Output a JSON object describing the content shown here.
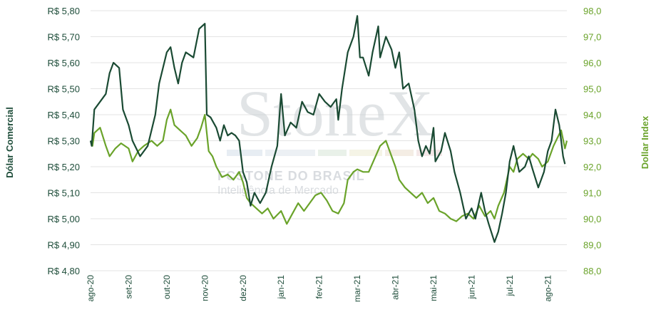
{
  "chart_data": {
    "type": "line",
    "x": [
      "ago-20",
      "set-20",
      "out-20",
      "nov-20",
      "dez-20",
      "jan-21",
      "fev-21",
      "mar-21",
      "abr-21",
      "mai-21",
      "jun-21",
      "jul-21",
      "ago-21"
    ],
    "left_axis": {
      "label": "Dólar Comercial",
      "ylim": [
        4.8,
        5.8
      ],
      "ticks": [
        "R$ 4,80",
        "R$ 4,90",
        "R$ 5,00",
        "R$ 5,10",
        "R$ 5,20",
        "R$ 5,30",
        "R$ 5,40",
        "R$ 5,50",
        "R$ 5,60",
        "R$ 5,70",
        "R$ 5,80"
      ]
    },
    "right_axis": {
      "label": "Dollar Index",
      "ylim": [
        88.0,
        98.0
      ],
      "ticks": [
        "88,0",
        "89,0",
        "90,0",
        "91,0",
        "92,0",
        "93,0",
        "94,0",
        "95,0",
        "96,0",
        "97,0",
        "98,0"
      ]
    },
    "grid": true,
    "series": [
      {
        "name": "Dólar Comercial",
        "axis": "left",
        "color": "#1a4a33",
        "points": [
          [
            0,
            5.3
          ],
          [
            0.03,
            5.28
          ],
          [
            0.1,
            5.42
          ],
          [
            0.25,
            5.45
          ],
          [
            0.4,
            5.48
          ],
          [
            0.5,
            5.56
          ],
          [
            0.6,
            5.6
          ],
          [
            0.75,
            5.58
          ],
          [
            0.85,
            5.42
          ],
          [
            1.0,
            5.36
          ],
          [
            1.1,
            5.3
          ],
          [
            1.3,
            5.24
          ],
          [
            1.5,
            5.28
          ],
          [
            1.7,
            5.4
          ],
          [
            1.8,
            5.52
          ],
          [
            2.0,
            5.64
          ],
          [
            2.1,
            5.66
          ],
          [
            2.2,
            5.58
          ],
          [
            2.3,
            5.52
          ],
          [
            2.4,
            5.6
          ],
          [
            2.5,
            5.64
          ],
          [
            2.7,
            5.62
          ],
          [
            2.85,
            5.73
          ],
          [
            3.0,
            5.75
          ],
          [
            3.05,
            5.4
          ],
          [
            3.15,
            5.39
          ],
          [
            3.3,
            5.35
          ],
          [
            3.4,
            5.3
          ],
          [
            3.5,
            5.36
          ],
          [
            3.6,
            5.32
          ],
          [
            3.7,
            5.33
          ],
          [
            3.8,
            5.32
          ],
          [
            3.9,
            5.3
          ],
          [
            4.0,
            5.18
          ],
          [
            4.1,
            5.14
          ],
          [
            4.2,
            5.05
          ],
          [
            4.3,
            5.1
          ],
          [
            4.45,
            5.06
          ],
          [
            4.6,
            5.1
          ],
          [
            4.75,
            5.2
          ],
          [
            4.9,
            5.28
          ],
          [
            5.0,
            5.48
          ],
          [
            5.1,
            5.32
          ],
          [
            5.25,
            5.37
          ],
          [
            5.4,
            5.35
          ],
          [
            5.55,
            5.45
          ],
          [
            5.7,
            5.41
          ],
          [
            5.85,
            5.4
          ],
          [
            6.0,
            5.48
          ],
          [
            6.15,
            5.45
          ],
          [
            6.3,
            5.43
          ],
          [
            6.45,
            5.46
          ],
          [
            6.5,
            5.38
          ],
          [
            6.6,
            5.5
          ],
          [
            6.75,
            5.64
          ],
          [
            6.9,
            5.7
          ],
          [
            7.0,
            5.78
          ],
          [
            7.07,
            5.62
          ],
          [
            7.15,
            5.62
          ],
          [
            7.3,
            5.55
          ],
          [
            7.4,
            5.64
          ],
          [
            7.55,
            5.74
          ],
          [
            7.6,
            5.62
          ],
          [
            7.75,
            5.7
          ],
          [
            7.9,
            5.65
          ],
          [
            8.0,
            5.58
          ],
          [
            8.1,
            5.64
          ],
          [
            8.2,
            5.5
          ],
          [
            8.35,
            5.52
          ],
          [
            8.5,
            5.42
          ],
          [
            8.6,
            5.3
          ],
          [
            8.7,
            5.24
          ],
          [
            8.8,
            5.28
          ],
          [
            8.9,
            5.25
          ],
          [
            9.0,
            5.35
          ],
          [
            9.05,
            5.22
          ],
          [
            9.2,
            5.26
          ],
          [
            9.3,
            5.33
          ],
          [
            9.45,
            5.26
          ],
          [
            9.55,
            5.18
          ],
          [
            9.7,
            5.1
          ],
          [
            9.85,
            5.0
          ],
          [
            10.0,
            5.04
          ],
          [
            10.1,
            5.0
          ],
          [
            10.25,
            5.1
          ],
          [
            10.35,
            5.03
          ],
          [
            10.45,
            4.98
          ],
          [
            10.6,
            4.91
          ],
          [
            10.7,
            4.95
          ],
          [
            10.8,
            5.02
          ],
          [
            10.9,
            5.1
          ],
          [
            11.0,
            5.22
          ],
          [
            11.1,
            5.28
          ],
          [
            11.25,
            5.18
          ],
          [
            11.4,
            5.2
          ],
          [
            11.5,
            5.24
          ],
          [
            11.6,
            5.19
          ],
          [
            11.75,
            5.12
          ],
          [
            11.9,
            5.18
          ],
          [
            12.0,
            5.26
          ],
          [
            12.1,
            5.3
          ],
          [
            12.2,
            5.42
          ],
          [
            12.3,
            5.36
          ],
          [
            12.4,
            5.24
          ],
          [
            12.45,
            5.21
          ]
        ]
      },
      {
        "name": "Dollar Index",
        "axis": "right",
        "color": "#6aa32a",
        "points": [
          [
            0,
            93.0
          ],
          [
            0.05,
            92.8
          ],
          [
            0.1,
            93.3
          ],
          [
            0.25,
            93.5
          ],
          [
            0.4,
            92.8
          ],
          [
            0.5,
            92.4
          ],
          [
            0.65,
            92.7
          ],
          [
            0.8,
            92.9
          ],
          [
            1.0,
            92.7
          ],
          [
            1.1,
            92.2
          ],
          [
            1.25,
            92.6
          ],
          [
            1.4,
            92.8
          ],
          [
            1.6,
            93.0
          ],
          [
            1.75,
            92.8
          ],
          [
            1.9,
            93.0
          ],
          [
            2.0,
            93.8
          ],
          [
            2.1,
            94.2
          ],
          [
            2.2,
            93.6
          ],
          [
            2.35,
            93.4
          ],
          [
            2.5,
            93.2
          ],
          [
            2.65,
            92.8
          ],
          [
            2.8,
            93.1
          ],
          [
            2.9,
            93.5
          ],
          [
            3.0,
            94.0
          ],
          [
            3.1,
            92.6
          ],
          [
            3.2,
            92.4
          ],
          [
            3.3,
            92.0
          ],
          [
            3.45,
            91.6
          ],
          [
            3.6,
            91.7
          ],
          [
            3.75,
            91.5
          ],
          [
            3.9,
            91.8
          ],
          [
            4.0,
            91.4
          ],
          [
            4.1,
            90.8
          ],
          [
            4.2,
            90.6
          ],
          [
            4.35,
            90.4
          ],
          [
            4.5,
            90.2
          ],
          [
            4.65,
            90.4
          ],
          [
            4.8,
            90.0
          ],
          [
            5.0,
            90.3
          ],
          [
            5.15,
            89.8
          ],
          [
            5.3,
            90.2
          ],
          [
            5.45,
            90.6
          ],
          [
            5.6,
            90.3
          ],
          [
            5.75,
            90.6
          ],
          [
            5.9,
            90.9
          ],
          [
            6.05,
            91.0
          ],
          [
            6.2,
            90.7
          ],
          [
            6.35,
            90.3
          ],
          [
            6.5,
            90.2
          ],
          [
            6.65,
            90.6
          ],
          [
            6.75,
            91.5
          ],
          [
            6.9,
            91.8
          ],
          [
            7.0,
            91.9
          ],
          [
            7.15,
            91.8
          ],
          [
            7.3,
            91.8
          ],
          [
            7.45,
            92.3
          ],
          [
            7.6,
            92.8
          ],
          [
            7.75,
            93.0
          ],
          [
            7.85,
            92.6
          ],
          [
            8.0,
            92.0
          ],
          [
            8.1,
            91.5
          ],
          [
            8.25,
            91.2
          ],
          [
            8.4,
            91.0
          ],
          [
            8.55,
            90.8
          ],
          [
            8.7,
            91.0
          ],
          [
            8.85,
            90.6
          ],
          [
            9.0,
            90.8
          ],
          [
            9.15,
            90.3
          ],
          [
            9.3,
            90.2
          ],
          [
            9.45,
            90.0
          ],
          [
            9.6,
            89.9
          ],
          [
            9.75,
            90.1
          ],
          [
            9.9,
            90.2
          ],
          [
            10.05,
            90.0
          ],
          [
            10.2,
            90.5
          ],
          [
            10.35,
            90.1
          ],
          [
            10.5,
            90.3
          ],
          [
            10.6,
            90.0
          ],
          [
            10.7,
            90.5
          ],
          [
            10.85,
            91.0
          ],
          [
            11.0,
            92.0
          ],
          [
            11.1,
            91.8
          ],
          [
            11.2,
            92.3
          ],
          [
            11.35,
            92.5
          ],
          [
            11.5,
            92.3
          ],
          [
            11.6,
            92.5
          ],
          [
            11.75,
            92.3
          ],
          [
            11.85,
            92.0
          ],
          [
            12.0,
            92.2
          ],
          [
            12.15,
            92.8
          ],
          [
            12.25,
            93.1
          ],
          [
            12.35,
            93.4
          ],
          [
            12.45,
            92.7
          ],
          [
            12.5,
            93.0
          ]
        ]
      }
    ]
  },
  "watermark": {
    "brand": "StoneX",
    "line1": "FCSTONE DO BRASIL",
    "line2": "Inteligência de Mercado"
  }
}
